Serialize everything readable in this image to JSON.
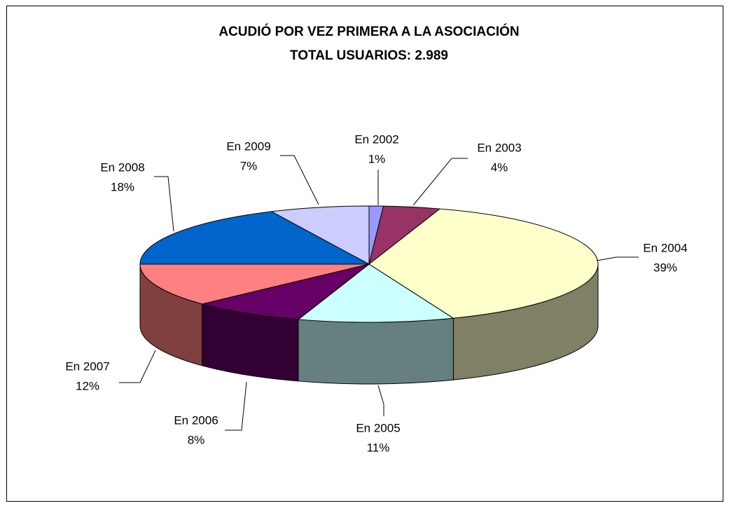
{
  "chart_data": {
    "type": "pie",
    "title": "ACUDIÓ POR VEZ PRIMERA A LA ASOCIACIÓN",
    "subtitle": "TOTAL USUARIOS: 2.989",
    "categories": [
      "En 2002",
      "En 2003",
      "En 2004",
      "En 2005",
      "En 2006",
      "En 2007",
      "En 2008",
      "En 2009"
    ],
    "values": [
      1,
      4,
      39,
      11,
      8,
      12,
      18,
      7
    ],
    "value_labels": [
      "1%",
      "4%",
      "39%",
      "11%",
      "8%",
      "12%",
      "18%",
      "7%"
    ],
    "colors": [
      "#9999ff",
      "#993366",
      "#ffffcc",
      "#ccffff",
      "#660066",
      "#ff8080",
      "#0066cc",
      "#ccccff"
    ]
  }
}
